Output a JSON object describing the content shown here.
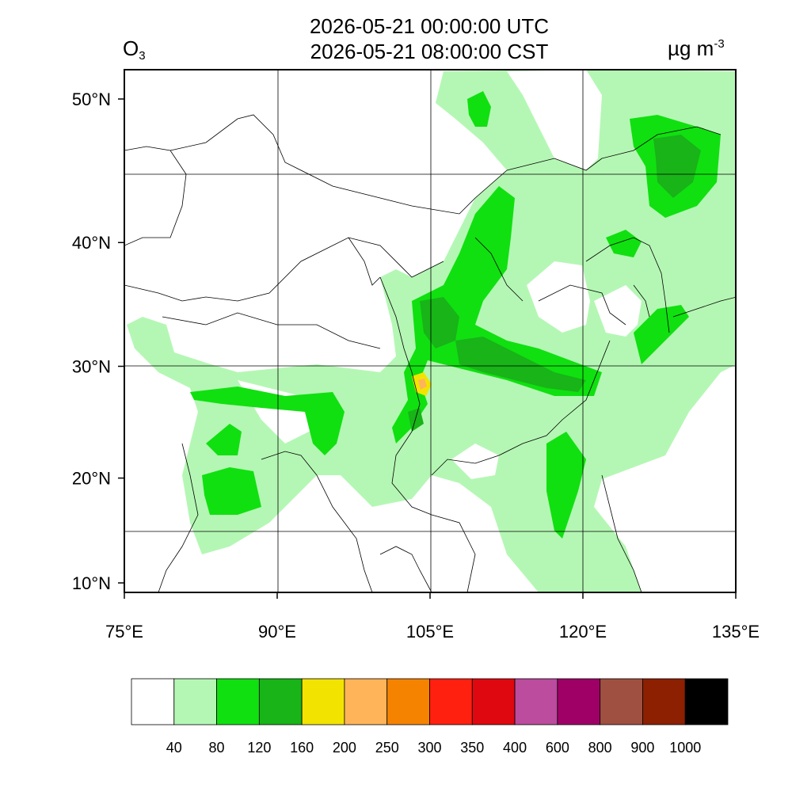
{
  "title": {
    "line1": "2026-05-21 00:00:00 UTC",
    "line2": "2026-05-21 08:00:00 CST"
  },
  "species": {
    "base": "O",
    "subscript": "3"
  },
  "units": {
    "base": "µg m",
    "superscript": "-3"
  },
  "map": {
    "lon_range": [
      75,
      135
    ],
    "lat_range": [
      9,
      52
    ],
    "lon_ticks": [
      {
        "value": 75,
        "label": "75°E"
      },
      {
        "value": 90,
        "label": "90°E"
      },
      {
        "value": 105,
        "label": "105°E"
      },
      {
        "value": 120,
        "label": "120°E"
      },
      {
        "value": 135,
        "label": "135°E"
      }
    ],
    "lat_ticks": [
      {
        "value": 10,
        "label": "10°N"
      },
      {
        "value": 20,
        "label": "20°N"
      },
      {
        "value": 30,
        "label": "30°N"
      },
      {
        "value": 40,
        "label": "40°N"
      },
      {
        "value": 50,
        "label": "50°N"
      }
    ]
  },
  "colorbar": {
    "colors": [
      "#ffffff",
      "#b4f7b4",
      "#10e010",
      "#18b418",
      "#f2e400",
      "#ffb45a",
      "#f58300",
      "#ff2010",
      "#e00810",
      "#bb4c9e",
      "#9e0066",
      "#a05040",
      "#8c2000",
      "#000000"
    ],
    "labels": [
      "40",
      "80",
      "120",
      "160",
      "200",
      "250",
      "300",
      "350",
      "400",
      "600",
      "800",
      "900",
      "1000"
    ]
  },
  "colors": {
    "light_green": "#b4f7b4",
    "green": "#10e010",
    "dark_green": "#18b418",
    "yellow": "#f2e400",
    "orange": "#ffb45a"
  }
}
